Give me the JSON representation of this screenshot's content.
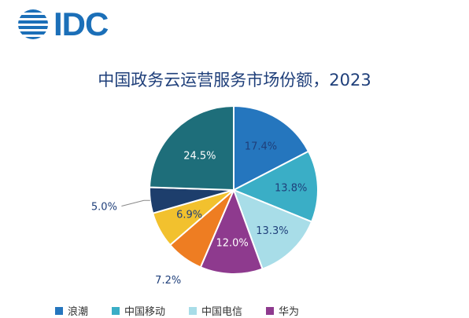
{
  "brand": {
    "logo_text": "IDC",
    "color": "#1b6fb8"
  },
  "chart_data": {
    "type": "pie",
    "title": "中国政务云运营服务市场份额，2023",
    "slices": [
      {
        "label": "17.4%",
        "value": 17.4,
        "color": "#2576be",
        "text_color": "#1f3f7a"
      },
      {
        "label": "13.8%",
        "value": 13.8,
        "color": "#3aaec6",
        "text_color": "#1f3f7a"
      },
      {
        "label": "13.3%",
        "value": 13.3,
        "color": "#a8dde8",
        "text_color": "#1f3f7a"
      },
      {
        "label": "12.0%",
        "value": 12.0,
        "color": "#8e3a8e",
        "text_color": "#ffffff"
      },
      {
        "label": "7.2%",
        "value": 7.2,
        "color": "#ee7d22",
        "text_color": "#1f3f7a"
      },
      {
        "label": "6.9%",
        "value": 6.9,
        "color": "#f2c12e",
        "text_color": "#1f3f7a"
      },
      {
        "label": "5.0%",
        "value": 5.0,
        "color": "#1d3e6c",
        "text_color": "#1f3f7a"
      },
      {
        "label": "24.5%",
        "value": 24.5,
        "color": "#1e6e7a",
        "text_color": "#ffffff"
      }
    ],
    "legend": [
      {
        "label": "浪潮",
        "color": "#2576be"
      },
      {
        "label": "中国移动",
        "color": "#3aaec6"
      },
      {
        "label": "中国电信",
        "color": "#a8dde8"
      },
      {
        "label": "华为",
        "color": "#8e3a8e"
      }
    ]
  }
}
